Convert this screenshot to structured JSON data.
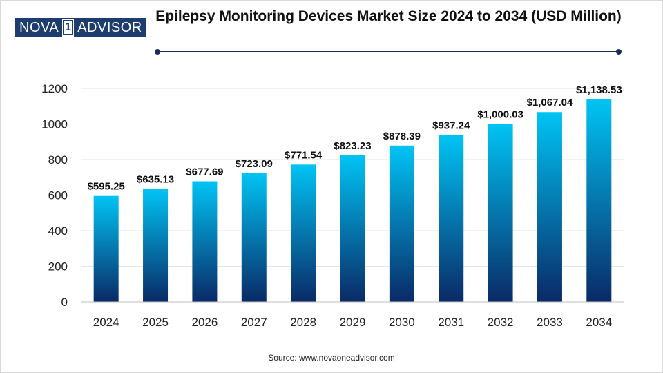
{
  "logo": {
    "part1": "NOVA",
    "part2": "1",
    "part3": "ADVISOR"
  },
  "title": "Epilepsy Monitoring Devices Market Size 2024 to 2034 (USD Million)",
  "source": "Source: www.novaoneadvisor.com",
  "colors": {
    "bar_top": "#00c4f4",
    "bar_bottom": "#0a2a66",
    "rule": "#1c2c5a",
    "logo": "#1c3d6e"
  },
  "chart_data": {
    "type": "bar",
    "title": "Epilepsy Monitoring Devices Market Size 2024 to 2034 (USD Million)",
    "xlabel": "",
    "ylabel": "",
    "categories": [
      "2024",
      "2025",
      "2026",
      "2027",
      "2028",
      "2029",
      "2030",
      "2031",
      "2032",
      "2033",
      "2034"
    ],
    "values": [
      595.25,
      635.13,
      677.69,
      723.09,
      771.54,
      823.23,
      878.39,
      937.24,
      1000.03,
      1067.04,
      1138.53
    ],
    "value_labels": [
      "$595.25",
      "$635.13",
      "$677.69",
      "$723.09",
      "$771.54",
      "$823.23",
      "$878.39",
      "$937.24",
      "$1,000.03",
      "$1,067.04",
      "$1,138.53"
    ],
    "yticks": [
      0,
      200,
      400,
      600,
      800,
      1000,
      1200
    ],
    "ylim": [
      0,
      1200
    ],
    "grid": true,
    "legend": "none"
  }
}
